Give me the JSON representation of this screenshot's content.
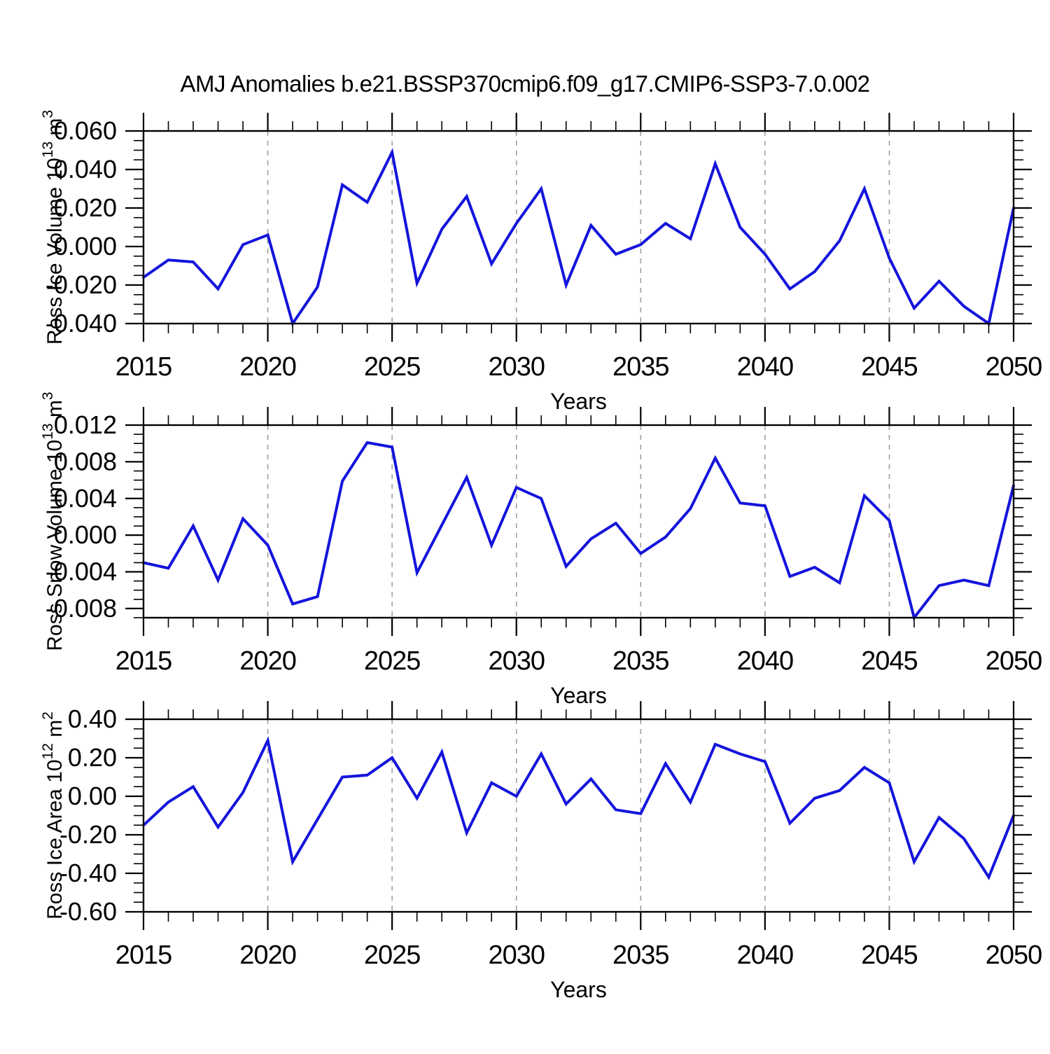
{
  "title": "AMJ Anomalies b.e21.BSSP370cmip6.f09_g17.CMIP6-SSP3-7.0.002",
  "line_color": "#1414dc",
  "grid_color": "#999999",
  "chart_data": [
    {
      "type": "line",
      "id": "ross-ice-volume",
      "ylabel_plain": "Ross Ice Volume 10^13 m^3",
      "ylabel_parts": [
        [
          "Ross Ice Volume 10",
          false
        ],
        [
          "13",
          true
        ],
        [
          " m",
          false
        ],
        [
          "3",
          true
        ]
      ],
      "xlabel": "Years",
      "xlim": [
        2015,
        2050
      ],
      "ylim": [
        -0.04,
        0.06
      ],
      "xtick_values": [
        2015,
        2020,
        2025,
        2030,
        2035,
        2040,
        2045,
        2050
      ],
      "xtick_labels": [
        "2015",
        "2020",
        "2025",
        "2030",
        "2035",
        "2040",
        "2045",
        "2050"
      ],
      "x_minor_step": 1,
      "grid_years": [
        2020,
        2025,
        2030,
        2035,
        2040,
        2045
      ],
      "ytick_values": [
        0.06,
        0.04,
        0.02,
        0.0,
        -0.02,
        -0.04
      ],
      "ytick_labels": [
        "0.060",
        "0.040",
        "0.020",
        "0.000",
        "-0.020",
        "-0.040"
      ],
      "y_minor_step": 0.005,
      "x": [
        2015,
        2016,
        2017,
        2018,
        2019,
        2020,
        2021,
        2022,
        2023,
        2024,
        2025,
        2026,
        2027,
        2028,
        2029,
        2030,
        2031,
        2032,
        2033,
        2034,
        2035,
        2036,
        2037,
        2038,
        2039,
        2040,
        2041,
        2042,
        2043,
        2044,
        2045,
        2046,
        2047,
        2048,
        2049,
        2050
      ],
      "values": [
        -0.016,
        -0.007,
        -0.008,
        -0.022,
        0.001,
        0.006,
        -0.04,
        -0.021,
        0.032,
        0.023,
        0.049,
        -0.019,
        0.009,
        0.026,
        -0.009,
        0.012,
        0.03,
        -0.02,
        0.011,
        -0.004,
        0.001,
        0.012,
        0.004,
        0.043,
        0.01,
        -0.004,
        -0.022,
        -0.013,
        0.003,
        0.03,
        -0.006,
        -0.032,
        -0.018,
        -0.031,
        -0.04,
        0.02
      ]
    },
    {
      "type": "line",
      "id": "ross-snow-volume",
      "ylabel_plain": "Ross Snow Volume 10^13 m^3",
      "ylabel_parts": [
        [
          "Ross Snow Volume 10",
          false
        ],
        [
          "13",
          true
        ],
        [
          " m",
          false
        ],
        [
          "3",
          true
        ]
      ],
      "xlabel": "Years",
      "xlim": [
        2015,
        2050
      ],
      "ylim": [
        -0.009,
        0.012
      ],
      "xtick_values": [
        2015,
        2020,
        2025,
        2030,
        2035,
        2040,
        2045,
        2050
      ],
      "xtick_labels": [
        "2015",
        "2020",
        "2025",
        "2030",
        "2035",
        "2040",
        "2045",
        "2050"
      ],
      "x_minor_step": 1,
      "grid_years": [
        2020,
        2025,
        2030,
        2035,
        2040,
        2045
      ],
      "ytick_values": [
        0.012,
        0.008,
        0.004,
        0.0,
        -0.004,
        -0.008
      ],
      "ytick_labels": [
        "0.012",
        "0.008",
        "0.004",
        "0.000",
        "-0.004",
        "-0.008"
      ],
      "y_minor_step": 0.001,
      "x": [
        2015,
        2016,
        2017,
        2018,
        2019,
        2020,
        2021,
        2022,
        2023,
        2024,
        2025,
        2026,
        2027,
        2028,
        2029,
        2030,
        2031,
        2032,
        2033,
        2034,
        2035,
        2036,
        2037,
        2038,
        2039,
        2040,
        2041,
        2042,
        2043,
        2044,
        2045,
        2046,
        2047,
        2048,
        2049,
        2050
      ],
      "values": [
        -0.003,
        -0.0036,
        0.001,
        -0.0049,
        0.0018,
        -0.0011,
        -0.0075,
        -0.0067,
        0.0059,
        0.0101,
        0.0096,
        -0.0041,
        0.0011,
        0.0063,
        -0.0011,
        0.0052,
        0.004,
        -0.0034,
        -0.0004,
        0.0013,
        -0.002,
        -0.0002,
        0.0029,
        0.0084,
        0.0035,
        0.0032,
        -0.0045,
        -0.0035,
        -0.0052,
        0.0043,
        0.0016,
        -0.009,
        -0.0055,
        -0.0049,
        -0.0055,
        0.0054
      ]
    },
    {
      "type": "line",
      "id": "ross-ice-area",
      "ylabel_plain": "Ross Ice Area 10^12 m^2",
      "ylabel_parts": [
        [
          "Ross Ice Area 10",
          false
        ],
        [
          "12",
          true
        ],
        [
          " m",
          false
        ],
        [
          "2",
          true
        ]
      ],
      "xlabel": "Years",
      "xlim": [
        2015,
        2050
      ],
      "ylim": [
        -0.6,
        0.4
      ],
      "xtick_values": [
        2015,
        2020,
        2025,
        2030,
        2035,
        2040,
        2045,
        2050
      ],
      "xtick_labels": [
        "2015",
        "2020",
        "2025",
        "2030",
        "2035",
        "2040",
        "2045",
        "2050"
      ],
      "x_minor_step": 1,
      "grid_years": [
        2020,
        2025,
        2030,
        2035,
        2040,
        2045
      ],
      "ytick_values": [
        0.4,
        0.2,
        0.0,
        -0.2,
        -0.4,
        -0.6
      ],
      "ytick_labels": [
        "0.40",
        "0.20",
        "0.00",
        "-0.20",
        "-0.40",
        "-0.60"
      ],
      "y_minor_step": 0.05,
      "x": [
        2015,
        2016,
        2017,
        2018,
        2019,
        2020,
        2021,
        2022,
        2023,
        2024,
        2025,
        2026,
        2027,
        2028,
        2029,
        2030,
        2031,
        2032,
        2033,
        2034,
        2035,
        2036,
        2037,
        2038,
        2039,
        2040,
        2041,
        2042,
        2043,
        2044,
        2045,
        2046,
        2047,
        2048,
        2049,
        2050
      ],
      "values": [
        -0.15,
        -0.03,
        0.05,
        -0.16,
        0.02,
        0.29,
        -0.34,
        -0.12,
        0.1,
        0.11,
        0.2,
        -0.01,
        0.23,
        -0.19,
        0.07,
        0.0,
        0.22,
        -0.04,
        0.09,
        -0.07,
        -0.09,
        0.17,
        -0.03,
        0.27,
        0.22,
        0.18,
        -0.14,
        -0.01,
        0.03,
        0.15,
        0.07,
        -0.34,
        -0.11,
        -0.22,
        -0.42,
        -0.1
      ]
    }
  ]
}
